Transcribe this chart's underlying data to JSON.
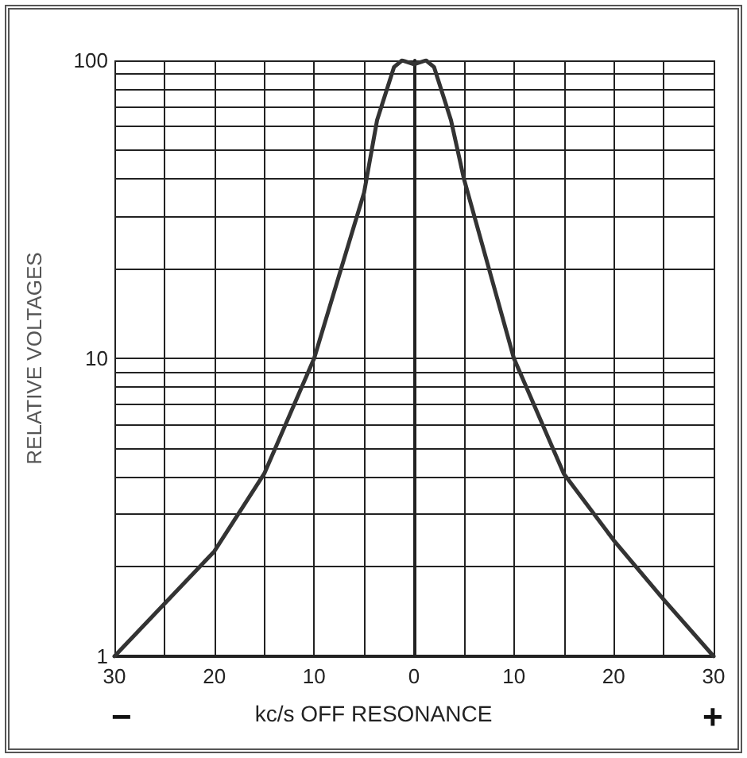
{
  "chart_data": {
    "type": "line",
    "xlabel": "kc/s OFF RESONANCE",
    "ylabel": "RELATIVE VOLTAGES",
    "x": [
      -30,
      -25,
      -20,
      -15,
      -10,
      -7.5,
      -5,
      -3.7,
      -2,
      -1.2,
      0,
      1.2,
      2,
      3.7,
      5,
      7.5,
      10,
      15,
      20,
      25,
      30
    ],
    "series": [
      {
        "color": "#333333",
        "values": [
          1,
          1.5,
          2.25,
          4.1,
          10,
          19,
          36,
          63,
          95,
          100,
          97,
          100,
          95,
          63,
          40,
          20,
          10,
          4.1,
          2.45,
          1.55,
          1
        ]
      }
    ],
    "xlim": [
      -30,
      30
    ],
    "xticks": [
      {
        "value": -30,
        "label": "30"
      },
      {
        "value": -25,
        "label": null
      },
      {
        "value": -20,
        "label": "20"
      },
      {
        "value": -15,
        "label": null
      },
      {
        "value": -10,
        "label": "10"
      },
      {
        "value": -5,
        "label": null
      },
      0,
      {
        "value": 5,
        "label": null
      },
      10,
      {
        "value": 15,
        "label": null
      },
      20,
      {
        "value": 25,
        "label": null
      },
      30
    ],
    "ylim": [
      1,
      100
    ],
    "yticks": [
      1,
      {
        "value": 2,
        "label": null
      },
      {
        "value": 3,
        "label": null
      },
      {
        "value": 4,
        "label": null
      },
      {
        "value": 5,
        "label": null
      },
      {
        "value": 6,
        "label": null
      },
      {
        "value": 7,
        "label": null
      },
      {
        "value": 8,
        "label": null
      },
      {
        "value": 9,
        "label": null
      },
      10,
      {
        "value": 20,
        "label": null
      },
      {
        "value": 30,
        "label": null
      },
      {
        "value": 40,
        "label": null
      },
      {
        "value": 50,
        "label": null
      },
      {
        "value": 60,
        "label": null
      },
      {
        "value": 70,
        "label": null
      },
      {
        "value": 80,
        "label": null
      },
      {
        "value": 90,
        "label": null
      },
      100
    ],
    "log": "y",
    "grid": true,
    "marker": "none",
    "line_style": "solid",
    "annotations": [
      "−",
      "+"
    ]
  }
}
